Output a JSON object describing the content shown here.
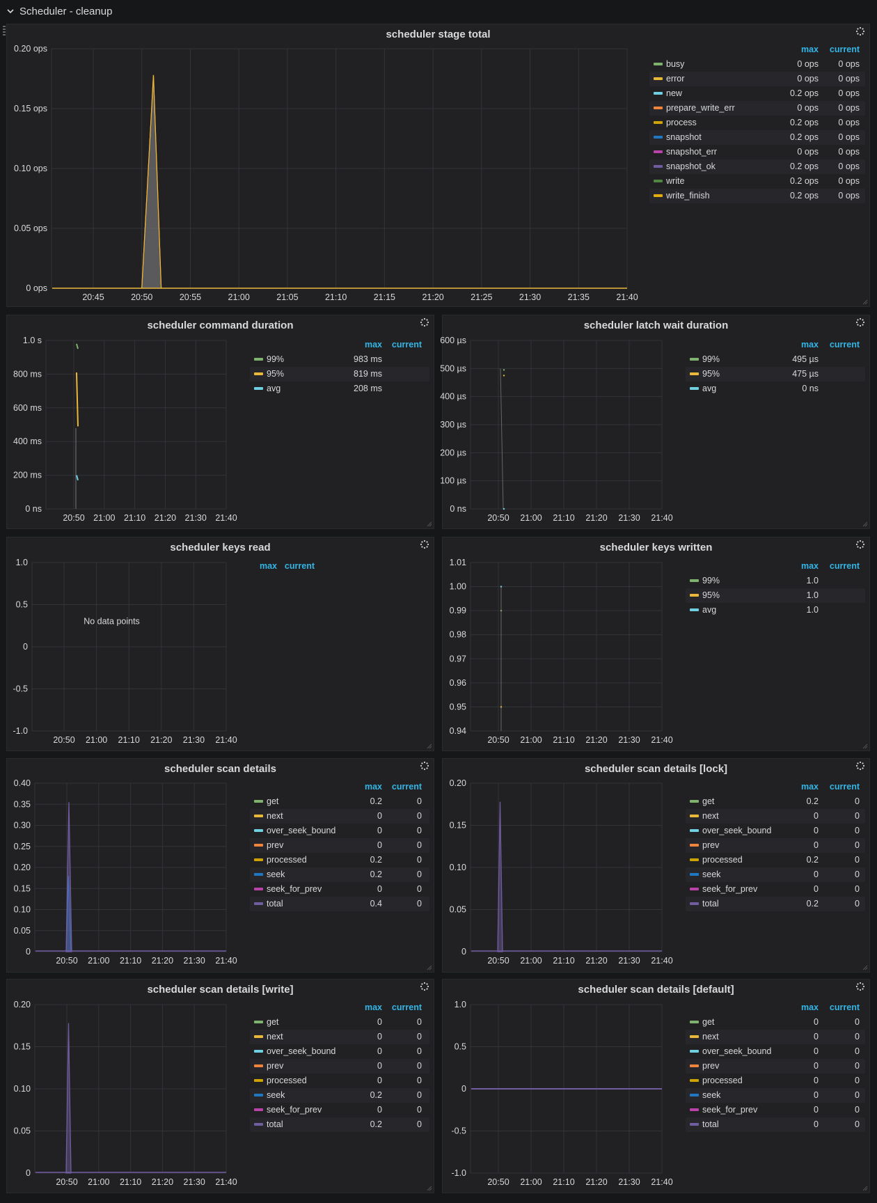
{
  "row": {
    "title": "Scheduler - cleanup"
  },
  "legend_header": {
    "max": "max",
    "current": "current"
  },
  "panels": [
    {
      "id": "stage-total",
      "title": "scheduler stage total",
      "chart_data": {
        "type": "area",
        "title": "scheduler stage total",
        "x_ticks": [
          "20:45",
          "20:50",
          "20:55",
          "21:00",
          "21:05",
          "21:10",
          "21:15",
          "21:20",
          "21:25",
          "21:30",
          "21:35",
          "21:40"
        ],
        "y_ticks": [
          "0 ops",
          "0.05 ops",
          "0.10 ops",
          "0.15 ops",
          "0.20 ops"
        ],
        "ylim": [
          0,
          0.2
        ],
        "grid": true,
        "legend_placement": "right",
        "series": [
          {
            "name": "busy",
            "color": "#7eb26d",
            "max": "0 ops",
            "current": "0 ops"
          },
          {
            "name": "error",
            "color": "#eab839",
            "max": "0 ops",
            "current": "0 ops"
          },
          {
            "name": "new",
            "color": "#6ed0e0",
            "max": "0.2 ops",
            "current": "0 ops"
          },
          {
            "name": "prepare_write_err",
            "color": "#ef843c",
            "max": "0 ops",
            "current": "0 ops"
          },
          {
            "name": "process",
            "color": "#cca300",
            "max": "0.2 ops",
            "current": "0 ops"
          },
          {
            "name": "snapshot",
            "color": "#1f78c1",
            "max": "0.2 ops",
            "current": "0 ops"
          },
          {
            "name": "snapshot_err",
            "color": "#ba43a9",
            "max": "0 ops",
            "current": "0 ops"
          },
          {
            "name": "snapshot_ok",
            "color": "#705da0",
            "max": "0.2 ops",
            "current": "0 ops"
          },
          {
            "name": "write",
            "color": "#508642",
            "max": "0.2 ops",
            "current": "0 ops"
          },
          {
            "name": "write_finish",
            "color": "#e5ac0e",
            "max": "0.2 ops",
            "current": "0 ops"
          }
        ],
        "spike": {
          "x_start": "20:50",
          "x_peak": "20:51",
          "x_end": "20:52",
          "peak": 0.178
        }
      }
    },
    {
      "id": "command-duration",
      "title": "scheduler command duration",
      "chart_data": {
        "type": "line",
        "title": "scheduler command duration",
        "x_ticks": [
          "20:50",
          "21:00",
          "21:10",
          "21:20",
          "21:30",
          "21:40"
        ],
        "y_ticks": [
          "0 ns",
          "200 ms",
          "400 ms",
          "600 ms",
          "800 ms",
          "1.0 s"
        ],
        "ylim": [
          0,
          1.0
        ],
        "grid": true,
        "legend_placement": "right",
        "series": [
          {
            "name": "99%",
            "color": "#7eb26d",
            "max": "983 ms",
            "current": "",
            "points": [
              [
                0.98,
                0.95
              ]
            ]
          },
          {
            "name": "95%",
            "color": "#eab839",
            "max": "819 ms",
            "current": "",
            "points": [
              [
                0.81,
                0.49
              ]
            ]
          },
          {
            "name": "avg",
            "color": "#6ed0e0",
            "max": "208 ms",
            "current": "",
            "points": [
              [
                0.2,
                0.17
              ]
            ]
          }
        ]
      }
    },
    {
      "id": "latch-wait",
      "title": "scheduler latch wait duration",
      "chart_data": {
        "type": "line",
        "title": "scheduler latch wait duration",
        "x_ticks": [
          "20:50",
          "21:00",
          "21:10",
          "21:20",
          "21:30",
          "21:40"
        ],
        "y_ticks": [
          "0 ns",
          "100 µs",
          "200 µs",
          "300 µs",
          "400 µs",
          "500 µs",
          "600 µs"
        ],
        "ylim": [
          0,
          600
        ],
        "grid": true,
        "legend_placement": "right",
        "series": [
          {
            "name": "99%",
            "color": "#7eb26d",
            "max": "495 µs",
            "current": ""
          },
          {
            "name": "95%",
            "color": "#eab839",
            "max": "475 µs",
            "current": ""
          },
          {
            "name": "avg",
            "color": "#6ed0e0",
            "max": "0 ns",
            "current": ""
          }
        ]
      }
    },
    {
      "id": "keys-read",
      "title": "scheduler keys read",
      "no_data": "No data points",
      "chart_data": {
        "type": "line",
        "title": "scheduler keys read",
        "x_ticks": [
          "20:50",
          "21:00",
          "21:10",
          "21:20",
          "21:30",
          "21:40"
        ],
        "y_ticks": [
          "-1.0",
          "-0.5",
          "0",
          "0.5",
          "1.0"
        ],
        "ylim": [
          -1.0,
          1.0
        ],
        "grid": true,
        "legend_placement": "right",
        "series": []
      }
    },
    {
      "id": "keys-written",
      "title": "scheduler keys written",
      "chart_data": {
        "type": "scatter",
        "title": "scheduler keys written",
        "x_ticks": [
          "20:50",
          "21:00",
          "21:10",
          "21:20",
          "21:30",
          "21:40"
        ],
        "y_ticks": [
          "0.94",
          "0.95",
          "0.96",
          "0.97",
          "0.98",
          "0.99",
          "1.00",
          "1.01"
        ],
        "ylim": [
          0.94,
          1.01
        ],
        "grid": true,
        "legend_placement": "right",
        "series": [
          {
            "name": "99%",
            "color": "#7eb26d",
            "max": "1.0",
            "current": ""
          },
          {
            "name": "95%",
            "color": "#eab839",
            "max": "1.0",
            "current": ""
          },
          {
            "name": "avg",
            "color": "#6ed0e0",
            "max": "1.0",
            "current": ""
          }
        ]
      }
    },
    {
      "id": "scan-details",
      "title": "scheduler scan details",
      "chart_data": {
        "type": "area",
        "title": "scheduler scan details",
        "x_ticks": [
          "20:50",
          "21:00",
          "21:10",
          "21:20",
          "21:30",
          "21:40"
        ],
        "y_ticks": [
          "0",
          "0.05",
          "0.10",
          "0.15",
          "0.20",
          "0.25",
          "0.30",
          "0.35",
          "0.40"
        ],
        "ylim": [
          0,
          0.4
        ],
        "grid": true,
        "legend_placement": "right",
        "series": [
          {
            "name": "get",
            "color": "#7eb26d",
            "max": "0.2",
            "current": "0"
          },
          {
            "name": "next",
            "color": "#eab839",
            "max": "0",
            "current": "0"
          },
          {
            "name": "over_seek_bound",
            "color": "#6ed0e0",
            "max": "0",
            "current": "0"
          },
          {
            "name": "prev",
            "color": "#ef843c",
            "max": "0",
            "current": "0"
          },
          {
            "name": "processed",
            "color": "#cca300",
            "max": "0.2",
            "current": "0"
          },
          {
            "name": "seek",
            "color": "#1f78c1",
            "max": "0.2",
            "current": "0"
          },
          {
            "name": "seek_for_prev",
            "color": "#ba43a9",
            "max": "0",
            "current": "0"
          },
          {
            "name": "total",
            "color": "#705da0",
            "max": "0.4",
            "current": "0"
          }
        ],
        "spikes": [
          {
            "color": "#1f78c1",
            "peak": 0.18
          },
          {
            "color": "#705da0",
            "peak": 0.355
          }
        ]
      }
    },
    {
      "id": "scan-lock",
      "title": "scheduler scan details [lock]",
      "chart_data": {
        "type": "area",
        "title": "scheduler scan details [lock]",
        "x_ticks": [
          "20:50",
          "21:00",
          "21:10",
          "21:20",
          "21:30",
          "21:40"
        ],
        "y_ticks": [
          "0",
          "0.05",
          "0.10",
          "0.15",
          "0.20"
        ],
        "ylim": [
          0,
          0.2
        ],
        "grid": true,
        "legend_placement": "right",
        "series": [
          {
            "name": "get",
            "color": "#7eb26d",
            "max": "0.2",
            "current": "0"
          },
          {
            "name": "next",
            "color": "#eab839",
            "max": "0",
            "current": "0"
          },
          {
            "name": "over_seek_bound",
            "color": "#6ed0e0",
            "max": "0",
            "current": "0"
          },
          {
            "name": "prev",
            "color": "#ef843c",
            "max": "0",
            "current": "0"
          },
          {
            "name": "processed",
            "color": "#cca300",
            "max": "0.2",
            "current": "0"
          },
          {
            "name": "seek",
            "color": "#1f78c1",
            "max": "0",
            "current": "0"
          },
          {
            "name": "seek_for_prev",
            "color": "#ba43a9",
            "max": "0",
            "current": "0"
          },
          {
            "name": "total",
            "color": "#705da0",
            "max": "0.2",
            "current": "0"
          }
        ],
        "spikes": [
          {
            "color": "#705da0",
            "peak": 0.178
          }
        ]
      }
    },
    {
      "id": "scan-write",
      "title": "scheduler scan details [write]",
      "chart_data": {
        "type": "area",
        "title": "scheduler scan details [write]",
        "x_ticks": [
          "20:50",
          "21:00",
          "21:10",
          "21:20",
          "21:30",
          "21:40"
        ],
        "y_ticks": [
          "0",
          "0.05",
          "0.10",
          "0.15",
          "0.20"
        ],
        "ylim": [
          0,
          0.2
        ],
        "grid": true,
        "legend_placement": "right",
        "series": [
          {
            "name": "get",
            "color": "#7eb26d",
            "max": "0",
            "current": "0"
          },
          {
            "name": "next",
            "color": "#eab839",
            "max": "0",
            "current": "0"
          },
          {
            "name": "over_seek_bound",
            "color": "#6ed0e0",
            "max": "0",
            "current": "0"
          },
          {
            "name": "prev",
            "color": "#ef843c",
            "max": "0",
            "current": "0"
          },
          {
            "name": "processed",
            "color": "#cca300",
            "max": "0",
            "current": "0"
          },
          {
            "name": "seek",
            "color": "#1f78c1",
            "max": "0.2",
            "current": "0"
          },
          {
            "name": "seek_for_prev",
            "color": "#ba43a9",
            "max": "0",
            "current": "0"
          },
          {
            "name": "total",
            "color": "#705da0",
            "max": "0.2",
            "current": "0"
          }
        ],
        "spikes": [
          {
            "color": "#705da0",
            "peak": 0.178
          }
        ]
      }
    },
    {
      "id": "scan-default",
      "title": "scheduler scan details [default]",
      "chart_data": {
        "type": "line",
        "title": "scheduler scan details [default]",
        "x_ticks": [
          "20:50",
          "21:00",
          "21:10",
          "21:20",
          "21:30",
          "21:40"
        ],
        "y_ticks": [
          "-1.0",
          "-0.5",
          "0",
          "0.5",
          "1.0"
        ],
        "ylim": [
          -1.0,
          1.0
        ],
        "grid": true,
        "legend_placement": "right",
        "series": [
          {
            "name": "get",
            "color": "#7eb26d",
            "max": "0",
            "current": "0"
          },
          {
            "name": "next",
            "color": "#eab839",
            "max": "0",
            "current": "0"
          },
          {
            "name": "over_seek_bound",
            "color": "#6ed0e0",
            "max": "0",
            "current": "0"
          },
          {
            "name": "prev",
            "color": "#ef843c",
            "max": "0",
            "current": "0"
          },
          {
            "name": "processed",
            "color": "#cca300",
            "max": "0",
            "current": "0"
          },
          {
            "name": "seek",
            "color": "#1f78c1",
            "max": "0",
            "current": "0"
          },
          {
            "name": "seek_for_prev",
            "color": "#ba43a9",
            "max": "0",
            "current": "0"
          },
          {
            "name": "total",
            "color": "#705da0",
            "max": "0",
            "current": "0"
          }
        ],
        "flat_value": 0
      }
    }
  ]
}
